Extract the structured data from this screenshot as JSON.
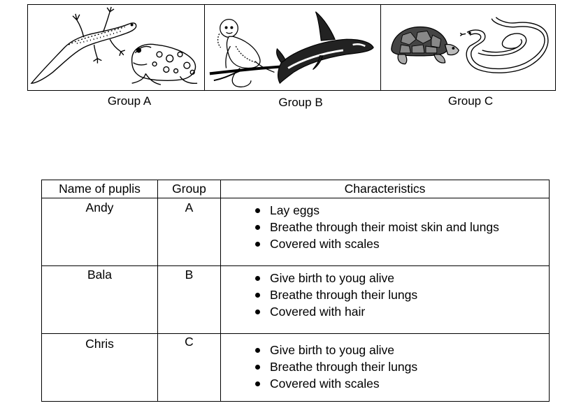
{
  "groups": [
    {
      "label": "Group A",
      "animals": [
        "lizard-icon",
        "frog-icon"
      ]
    },
    {
      "label": "Group B",
      "animals": [
        "monkey-icon",
        "orca-icon"
      ]
    },
    {
      "label": "Group C",
      "animals": [
        "tortoise-icon",
        "snake-icon"
      ]
    }
  ],
  "table": {
    "headers": [
      "Name of puplis",
      "Group",
      "Characteristics"
    ],
    "rows": [
      {
        "name": "Andy",
        "group": "A",
        "characteristics": [
          "Lay eggs",
          "Breathe through their moist skin and lungs",
          "Covered with scales"
        ]
      },
      {
        "name": "Bala",
        "group": "B",
        "characteristics": [
          "Give birth to youg alive",
          "Breathe through their lungs",
          "Covered with hair"
        ]
      },
      {
        "name": "Chris",
        "group": "C",
        "characteristics": [
          "Give birth to youg alive",
          "Breathe through their lungs",
          "Covered with scales"
        ]
      }
    ]
  }
}
